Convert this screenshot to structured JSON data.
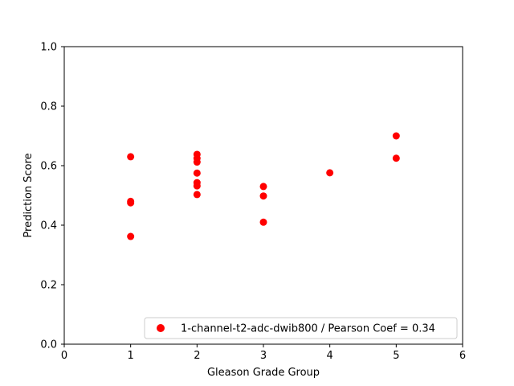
{
  "chart_data": {
    "type": "scatter",
    "title": "",
    "xlabel": "Gleason Grade Group",
    "ylabel": "Prediction Score",
    "xlim": [
      0,
      6
    ],
    "ylim": [
      0.0,
      1.0
    ],
    "xticks": [
      0,
      1,
      2,
      3,
      4,
      5,
      6
    ],
    "yticks": [
      0.0,
      0.2,
      0.4,
      0.6,
      0.8,
      1.0
    ],
    "xtick_labels": [
      "0",
      "1",
      "2",
      "3",
      "4",
      "5",
      "6"
    ],
    "ytick_labels": [
      "0.0",
      "0.2",
      "0.4",
      "0.6",
      "0.8",
      "1.0"
    ],
    "grid": false,
    "legend_position": "lower-right",
    "series": [
      {
        "name": "1-channel-t2-adc-dwib800 / Pearson Coef = 0.34",
        "color": "#ff0000",
        "points": [
          {
            "x": 1,
            "y": 0.63
          },
          {
            "x": 1,
            "y": 0.48
          },
          {
            "x": 1,
            "y": 0.475
          },
          {
            "x": 1,
            "y": 0.362
          },
          {
            "x": 2,
            "y": 0.638
          },
          {
            "x": 2,
            "y": 0.625
          },
          {
            "x": 2,
            "y": 0.612
          },
          {
            "x": 2,
            "y": 0.575
          },
          {
            "x": 2,
            "y": 0.543
          },
          {
            "x": 2,
            "y": 0.532
          },
          {
            "x": 2,
            "y": 0.503
          },
          {
            "x": 3,
            "y": 0.53
          },
          {
            "x": 3,
            "y": 0.498
          },
          {
            "x": 3,
            "y": 0.41
          },
          {
            "x": 4,
            "y": 0.576
          },
          {
            "x": 5,
            "y": 0.7
          },
          {
            "x": 5,
            "y": 0.625
          }
        ]
      }
    ]
  }
}
